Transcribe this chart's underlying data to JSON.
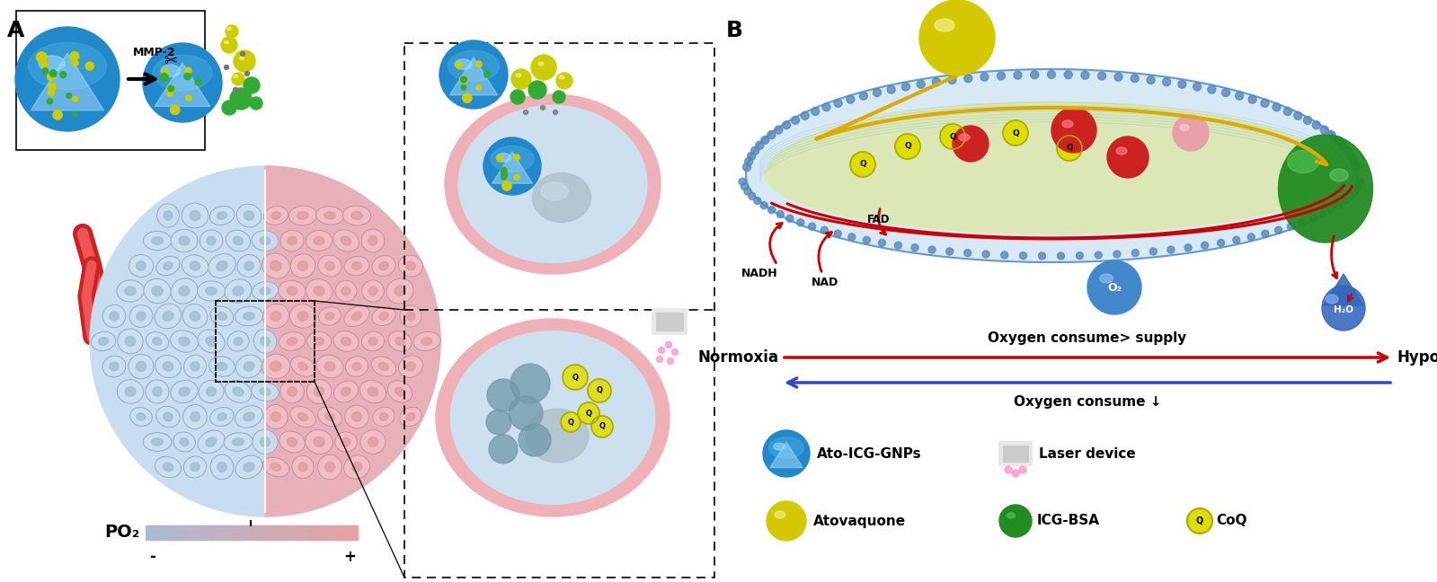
{
  "title_A": "A",
  "title_B": "B",
  "fig_width": 15.99,
  "fig_height": 6.48,
  "bg_color": "#ffffff",
  "normoxia_text": "Normoxia",
  "hypoxia_text": "Hypoxia",
  "oxygen_consume_supply": "Oxygen consume> supply",
  "oxygen_consume": "Oxygen consume ↓",
  "nadh_text": "NADH",
  "nad_text": "NAD",
  "fad_text": "FAD",
  "mmp2_text": "MMP-2",
  "po2_text": "PO₂",
  "minus_text": "-",
  "plus_text": "+"
}
